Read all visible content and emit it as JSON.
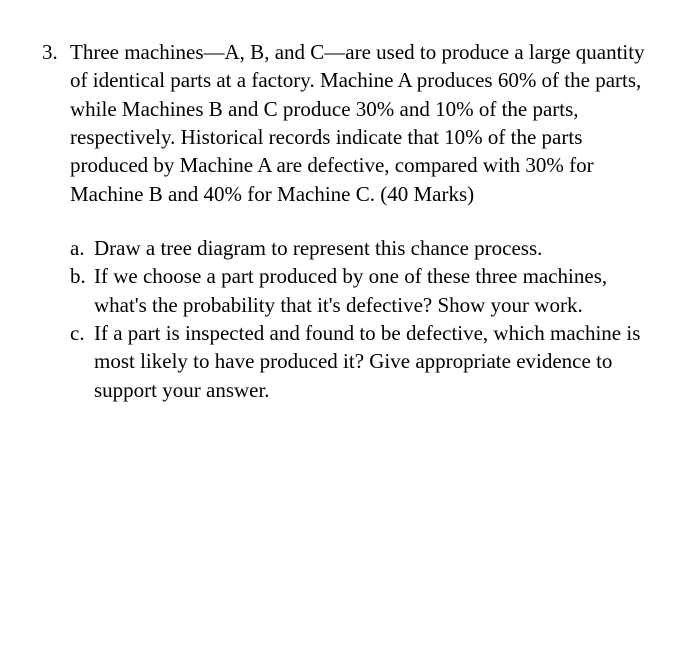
{
  "question": {
    "number": "3.",
    "main_text": "Three machines—A, B, and C—are used to produce a large quantity of identical parts at a factory. Machine A produces 60% of the parts, while Machines B and C produce 30% and 10% of the parts, respectively. Historical records indicate that 10% of the parts produced by Machine A are defective, compared with 30% for Machine B and 40% for Machine C. (40 Marks)",
    "subparts": [
      {
        "letter": "a.",
        "text": "Draw a tree diagram to represent this chance process."
      },
      {
        "letter": "b.",
        "text": "If we choose a part produced by one of these three machines, what's the probability that it's defective? Show your work."
      },
      {
        "letter": "c.",
        "text": "If a part is inspected and found to be defective, which machine is most likely to have produced it? Give appropriate evidence to support your answer."
      }
    ]
  }
}
